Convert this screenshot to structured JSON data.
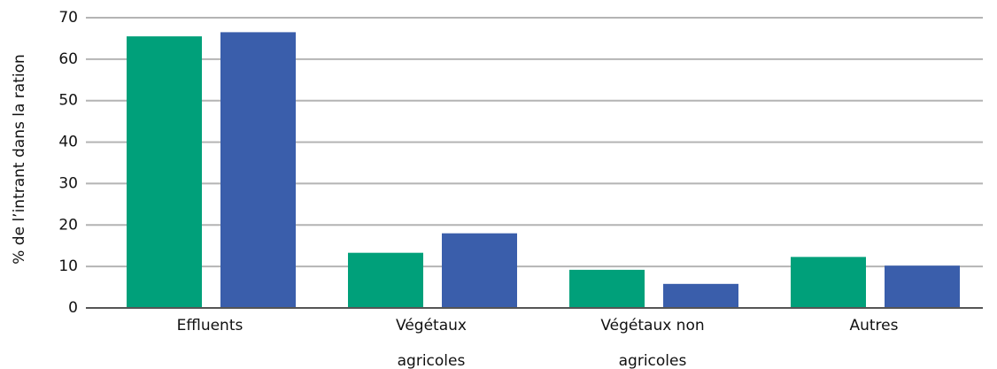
{
  "chart_data": {
    "type": "bar",
    "ylabel": "% de l’intrant dans la ration",
    "categories": [
      "Effluents",
      "Végétaux\nagricoles",
      "Végétaux non\nagricoles",
      "Autres"
    ],
    "series": [
      {
        "color": "#00a07a",
        "values": [
          65.5,
          13.3,
          9.2,
          12.3
        ]
      },
      {
        "color": "#3a5eab",
        "values": [
          66.5,
          18,
          5.8,
          10.2
        ]
      }
    ],
    "ylim": [
      0,
      70
    ],
    "yticks": [
      0,
      10,
      20,
      30,
      40,
      50,
      60,
      70
    ],
    "grid": true
  }
}
